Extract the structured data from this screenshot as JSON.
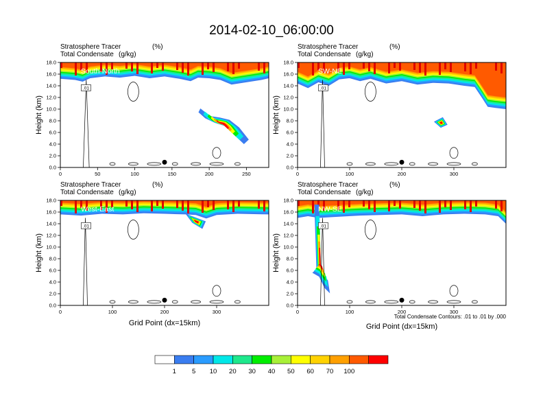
{
  "title": "2014-02-10_06:00:00",
  "chart_data": [
    {
      "type": "heatmap",
      "panel": "top-left",
      "direction_label": "South-North",
      "header_left": [
        "Stratosphere Tracer",
        "Total Condensate"
      ],
      "header_units": [
        "(%)",
        "(g/kg)"
      ],
      "ylabel": "Height (km)",
      "xlabel": "",
      "xlim": [
        0,
        280
      ],
      "ylim": [
        0,
        18
      ],
      "x_ticks": [
        "0",
        "50",
        "100",
        "150",
        "200",
        "250"
      ],
      "y_ticks": [
        "0.0",
        "2.0",
        "4.0",
        "6.0",
        "8.0",
        "10.0",
        "12.0",
        "14.0",
        "16.0",
        "18.0"
      ],
      "tracer_base_km": [
        [
          0,
          15.2
        ],
        [
          20,
          15.0
        ],
        [
          30,
          14.7
        ],
        [
          40,
          15.3
        ],
        [
          60,
          15.6
        ],
        [
          80,
          15.4
        ],
        [
          100,
          15.7
        ],
        [
          120,
          15.3
        ],
        [
          140,
          15.6
        ],
        [
          160,
          15.2
        ],
        [
          175,
          14.8
        ],
        [
          185,
          15.4
        ],
        [
          200,
          15.3
        ],
        [
          215,
          15.0
        ],
        [
          230,
          14.2
        ],
        [
          250,
          14.6
        ],
        [
          270,
          15.0
        ],
        [
          280,
          15.3
        ]
      ],
      "intrusion_km": [
        [
          195,
          9.5
        ],
        [
          205,
          8.5
        ],
        [
          215,
          8.3
        ],
        [
          225,
          8.0
        ],
        [
          235,
          7.0
        ],
        [
          245,
          5.4
        ],
        [
          240,
          4.8
        ],
        [
          230,
          6.0
        ],
        [
          220,
          7.2
        ],
        [
          210,
          7.6
        ],
        [
          200,
          8.2
        ],
        [
          193,
          9.0
        ]
      ],
      "contour_label": ".01",
      "marker_x": 140
    },
    {
      "type": "heatmap",
      "panel": "top-right",
      "direction_label": "SW-NE",
      "header_left": [
        "Stratosphere Tracer",
        "Total Condensate"
      ],
      "header_units": [
        "(%)",
        "(g/kg)"
      ],
      "ylabel": "Height (km)",
      "xlabel": "",
      "xlim": [
        0,
        400
      ],
      "ylim": [
        0,
        18
      ],
      "x_ticks": [
        "0",
        "100",
        "200",
        "300"
      ],
      "y_ticks": [
        "0.0",
        "2.0",
        "4.0",
        "6.0",
        "8.0",
        "10.0",
        "12.0",
        "14.0",
        "16.0",
        "18.0"
      ],
      "tracer_base_km": [
        [
          0,
          14.4
        ],
        [
          20,
          13.6
        ],
        [
          40,
          14.6
        ],
        [
          60,
          14.0
        ],
        [
          80,
          15.1
        ],
        [
          100,
          15.3
        ],
        [
          120,
          14.8
        ],
        [
          140,
          15.2
        ],
        [
          170,
          14.4
        ],
        [
          200,
          14.8
        ],
        [
          230,
          14.2
        ],
        [
          260,
          14.5
        ],
        [
          290,
          14.4
        ],
        [
          320,
          14.0
        ],
        [
          340,
          13.8
        ],
        [
          355,
          11.8
        ],
        [
          365,
          10.4
        ],
        [
          380,
          10.2
        ],
        [
          400,
          10.0
        ]
      ],
      "intrusion_km": [
        [
          265,
          7.8
        ],
        [
          275,
          7.0
        ],
        [
          285,
          7.4
        ],
        [
          278,
          8.4
        ]
      ],
      "contour_label": ".01",
      "marker_x": 200
    },
    {
      "type": "heatmap",
      "panel": "bottom-left",
      "direction_label": "West-East",
      "header_left": [
        "Stratosphere Tracer",
        "Total Condensate"
      ],
      "header_units": [
        "(%)",
        "(g/kg)"
      ],
      "ylabel": "Height (km)",
      "xlabel": "Grid Point (dx=15km)",
      "xlim": [
        0,
        400
      ],
      "ylim": [
        0,
        18
      ],
      "x_ticks": [
        "0",
        "100",
        "200",
        "300"
      ],
      "y_ticks": [
        "0.0",
        "2.0",
        "4.0",
        "6.0",
        "8.0",
        "10.0",
        "12.0",
        "14.0",
        "16.0",
        "18.0"
      ],
      "tracer_base_km": [
        [
          0,
          15.6
        ],
        [
          40,
          15.4
        ],
        [
          80,
          15.7
        ],
        [
          120,
          15.6
        ],
        [
          160,
          15.8
        ],
        [
          200,
          15.7
        ],
        [
          240,
          15.6
        ],
        [
          260,
          15.5
        ],
        [
          280,
          14.9
        ],
        [
          300,
          15.5
        ],
        [
          340,
          15.7
        ],
        [
          400,
          15.6
        ]
      ],
      "intrusion_km": [
        [
          245,
          15.4
        ],
        [
          255,
          14.2
        ],
        [
          270,
          13.4
        ],
        [
          275,
          14.4
        ]
      ],
      "contour_label": ".01",
      "marker_x": 200
    },
    {
      "type": "heatmap",
      "panel": "bottom-right",
      "direction_label": "NW-SE",
      "header_left": [
        "Stratosphere Tracer",
        "Total Condensate"
      ],
      "header_units": [
        "(%)",
        "(g/kg)"
      ],
      "ylabel": "Height (km)",
      "xlabel": "Grid Point (dx=15km)",
      "xlim": [
        0,
        400
      ],
      "ylim": [
        0,
        18
      ],
      "x_ticks": [
        "0",
        "100",
        "200",
        "300"
      ],
      "y_ticks": [
        "0.0",
        "2.0",
        "4.0",
        "6.0",
        "8.0",
        "10.0",
        "12.0",
        "14.0",
        "16.0",
        "18.0"
      ],
      "tracer_base_km": [
        [
          0,
          15.0
        ],
        [
          20,
          15.3
        ],
        [
          40,
          15.0
        ],
        [
          60,
          15.1
        ],
        [
          80,
          15.2
        ],
        [
          120,
          15.4
        ],
        [
          160,
          15.5
        ],
        [
          200,
          15.6
        ],
        [
          240,
          15.3
        ],
        [
          280,
          15.6
        ],
        [
          320,
          15.7
        ],
        [
          360,
          15.6
        ],
        [
          385,
          15.3
        ],
        [
          400,
          14.0
        ]
      ],
      "intrusion_km": [
        [
          35,
          15.0
        ],
        [
          38,
          6.5
        ],
        [
          32,
          6.0
        ],
        [
          42,
          5.5
        ],
        [
          50,
          4.0
        ],
        [
          58,
          3.3
        ],
        [
          55,
          5.0
        ],
        [
          45,
          6.2
        ],
        [
          42,
          15.0
        ]
      ],
      "contour_label": ".01",
      "marker_x": 200,
      "footnote": "Total Condensate Contours: .01 to .01 by .000"
    }
  ],
  "colorbar": {
    "labels": [
      "1",
      "5",
      "10",
      "20",
      "30",
      "40",
      "50",
      "60",
      "70",
      "100"
    ],
    "colors": [
      "#ffffff",
      "#3a7df0",
      "#2a9cff",
      "#00e8e8",
      "#1ee88c",
      "#00ee00",
      "#a8f038",
      "#ffff00",
      "#ffd200",
      "#ffa000",
      "#ff5a00",
      "#ff0000"
    ]
  }
}
